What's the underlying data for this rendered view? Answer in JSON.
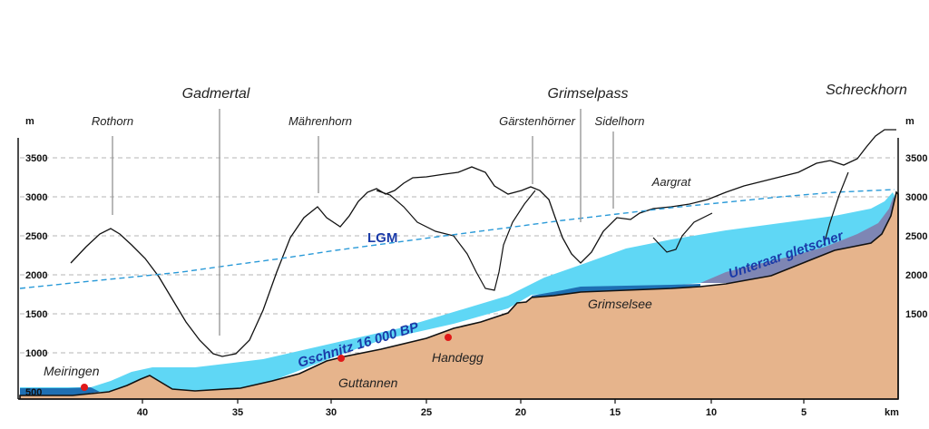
{
  "y_axis": {
    "unit_left": "m",
    "unit_right": "m",
    "ticks": [
      "3500",
      "3000",
      "2500",
      "2000",
      "1500",
      "1000",
      "500"
    ],
    "ticks_right": [
      "3500",
      "3000",
      "2500",
      "2000",
      "1500"
    ]
  },
  "x_axis": {
    "unit": "km",
    "ticks": [
      "40",
      "35",
      "30",
      "25",
      "20",
      "15",
      "10",
      "5"
    ]
  },
  "peaks": {
    "rothorn": "Rothorn",
    "gadmertal": "Gadmertal",
    "mahrenhorn": "Mährenhorn",
    "grimselpass": "Grimselpass",
    "garstenhorner": "Gärstenhörner",
    "sidelhorn": "Sidelhorn",
    "schreckhorn": "Schreckhorn",
    "aargrat": "Aargrat"
  },
  "places": {
    "meiringen": "Meiringen",
    "guttannen": "Guttannen",
    "handegg": "Handegg",
    "grimselsee": "Grimselsee"
  },
  "glacier": {
    "lgm": "LGM",
    "gschnitz": "Gschnitz 16 000 BP",
    "unteraar": "Unteraar gletscher"
  },
  "colors": {
    "bedrock": "#e6b48c",
    "ice": "#5fd7f5",
    "unteraar_ice": "#7e86b4",
    "lake": "#1e6fb3",
    "lgm_line": "#2a9ad8",
    "label_blue": "#1a3aa8",
    "marker": "#e01818"
  }
}
